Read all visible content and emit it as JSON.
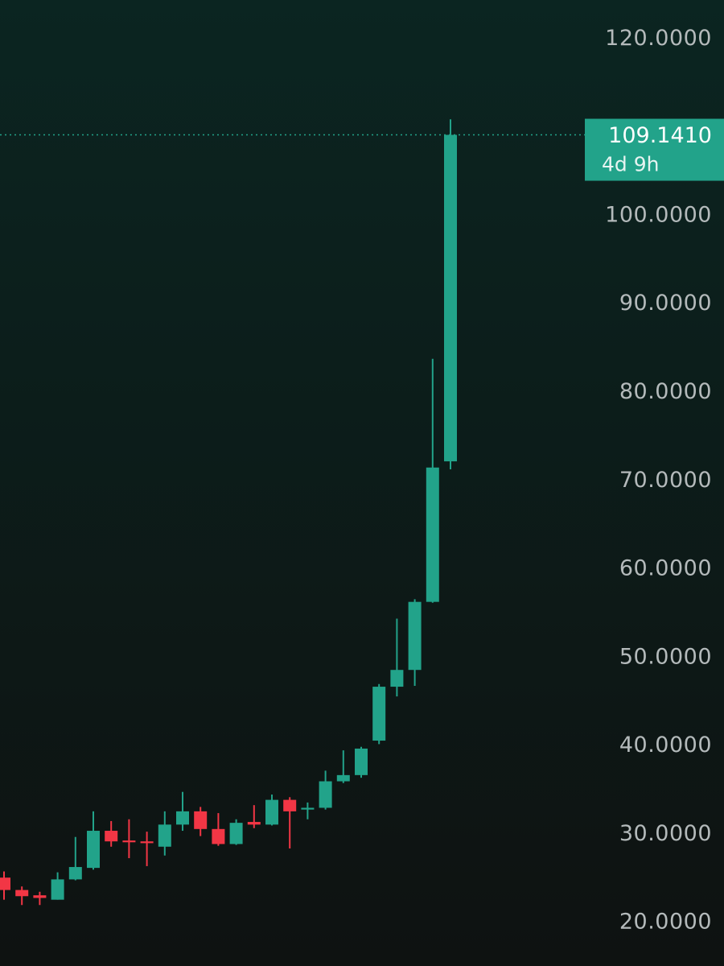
{
  "chart_data": {
    "type": "candlestick",
    "open": [
      25.1,
      23.7,
      23.1,
      22.6,
      24.9,
      26.2,
      30.4,
      29.3,
      29.2,
      28.6,
      31.1,
      32.6,
      30.6,
      28.9,
      31.4,
      31.1,
      33.9,
      32.8,
      33.0,
      36.0,
      36.7,
      40.6,
      46.7,
      48.6,
      56.3,
      72.2
    ],
    "high": [
      25.8,
      24.1,
      23.5,
      25.7,
      29.7,
      32.6,
      31.5,
      31.7,
      30.3,
      32.6,
      34.8,
      33.1,
      32.4,
      31.7,
      33.3,
      34.5,
      34.2,
      33.6,
      37.2,
      39.5,
      39.9,
      47.0,
      54.4,
      56.6,
      83.8,
      110.9
    ],
    "low": [
      22.6,
      22.0,
      22.0,
      22.6,
      24.8,
      26.0,
      28.6,
      27.3,
      26.4,
      27.6,
      30.4,
      29.8,
      28.7,
      28.8,
      30.7,
      31.0,
      28.4,
      31.7,
      32.8,
      35.8,
      36.4,
      40.2,
      45.6,
      46.8,
      56.2,
      71.3
    ],
    "close": [
      23.7,
      23.0,
      22.8,
      24.9,
      26.3,
      30.4,
      29.2,
      29.1,
      29.0,
      31.1,
      32.6,
      30.6,
      28.9,
      31.3,
      31.1,
      33.9,
      32.6,
      33.0,
      36.0,
      36.7,
      39.7,
      46.7,
      48.6,
      56.3,
      71.5,
      109.141
    ],
    "up_color": "#22a38a",
    "down_color": "#f23645",
    "ylim": [
      15.1,
      124.4
    ],
    "yticks": [
      {
        "value": 20,
        "label": "20.0000"
      },
      {
        "value": 30,
        "label": "30.0000"
      },
      {
        "value": 40,
        "label": "40.0000"
      },
      {
        "value": 50,
        "label": "50.0000"
      },
      {
        "value": 60,
        "label": "60.0000"
      },
      {
        "value": 70,
        "label": "70.0000"
      },
      {
        "value": 80,
        "label": "80.0000"
      },
      {
        "value": 90,
        "label": "90.0000"
      },
      {
        "value": 100,
        "label": "100.0000"
      },
      {
        "value": 120,
        "label": "120.0000"
      }
    ],
    "last_price": {
      "value": 109.141,
      "label": "109.1410",
      "countdown": "4d 9h"
    }
  }
}
